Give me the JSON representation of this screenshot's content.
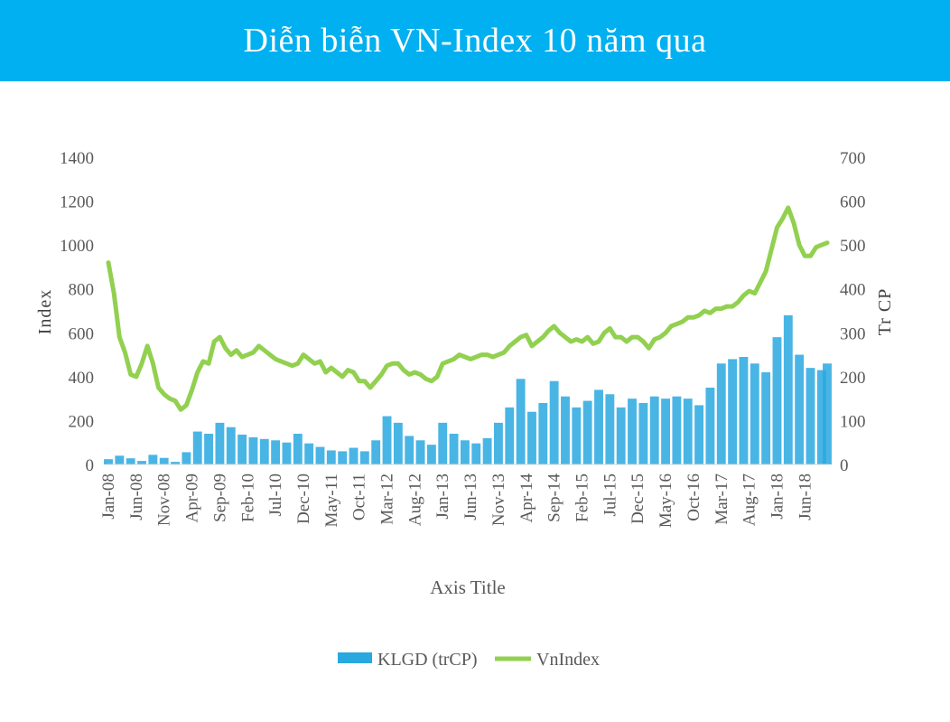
{
  "title": "Diễn biễn VN-Index 10 năm qua",
  "colors": {
    "banner": "#00b0f0",
    "volume": "#29a8e0",
    "index": "#92d050",
    "text": "#595959"
  },
  "chart_data": {
    "type": "bar+line",
    "xlabel": "Axis Title",
    "ylabel_left": "Index",
    "ylabel_right": "Tr CP",
    "ylim_left": [
      0,
      1400
    ],
    "ylim_right": [
      0,
      700
    ],
    "yticks_left": [
      "0",
      "200",
      "400",
      "600",
      "800",
      "1000",
      "1200",
      "1400"
    ],
    "yticks_right": [
      "0",
      "100",
      "200",
      "300",
      "400",
      "500",
      "600",
      "700"
    ],
    "x_tick_labels": [
      "Jan-08",
      "Jun-08",
      "Nov-08",
      "Apr-09",
      "Sep-09",
      "Feb-10",
      "Jul-10",
      "Dec-10",
      "May-11",
      "Oct-11",
      "Mar-12",
      "Aug-12",
      "Jan-13",
      "Jun-13",
      "Nov-13",
      "Apr-14",
      "Sep-14",
      "Feb-15",
      "Jul-15",
      "Dec-15",
      "May-16",
      "Oct-16",
      "Mar-17",
      "Aug-17",
      "Jan-18",
      "Jun-18"
    ],
    "x_range": [
      "Jan-08",
      "Oct-18"
    ],
    "legend": "bottom",
    "series": [
      {
        "name": "KLGD (trCP)",
        "type": "bar",
        "axis": "right",
        "x": [
          "Jan-08",
          "Mar-08",
          "May-08",
          "Jul-08",
          "Sep-08",
          "Nov-08",
          "Jan-09",
          "Mar-09",
          "May-09",
          "Jul-09",
          "Sep-09",
          "Nov-09",
          "Jan-10",
          "Mar-10",
          "May-10",
          "Jul-10",
          "Sep-10",
          "Nov-10",
          "Jan-11",
          "Mar-11",
          "May-11",
          "Jul-11",
          "Sep-11",
          "Nov-11",
          "Jan-12",
          "Mar-12",
          "May-12",
          "Jul-12",
          "Sep-12",
          "Nov-12",
          "Jan-13",
          "Mar-13",
          "May-13",
          "Jul-13",
          "Sep-13",
          "Nov-13",
          "Jan-14",
          "Mar-14",
          "May-14",
          "Jul-14",
          "Sep-14",
          "Nov-14",
          "Jan-15",
          "Mar-15",
          "May-15",
          "Jul-15",
          "Sep-15",
          "Nov-15",
          "Jan-16",
          "Mar-16",
          "May-16",
          "Jul-16",
          "Sep-16",
          "Nov-16",
          "Jan-17",
          "Mar-17",
          "May-17",
          "Jul-17",
          "Sep-17",
          "Nov-17",
          "Jan-18",
          "Mar-18",
          "May-18",
          "Jul-18",
          "Sep-18",
          "Oct-18"
        ],
        "values": [
          12,
          20,
          14,
          8,
          22,
          15,
          6,
          28,
          75,
          70,
          95,
          85,
          68,
          62,
          58,
          55,
          50,
          70,
          48,
          40,
          32,
          30,
          38,
          30,
          55,
          110,
          95,
          65,
          55,
          45,
          95,
          70,
          55,
          48,
          60,
          95,
          130,
          195,
          120,
          140,
          190,
          155,
          130,
          145,
          170,
          160,
          130,
          150,
          140,
          155,
          150,
          155,
          150,
          135,
          175,
          230,
          240,
          245,
          230,
          210,
          290,
          340,
          250,
          220,
          215,
          230
        ]
      },
      {
        "name": "VnIndex",
        "type": "line",
        "axis": "left",
        "x": [
          "Jan-08",
          "Feb-08",
          "Mar-08",
          "Apr-08",
          "May-08",
          "Jun-08",
          "Jul-08",
          "Aug-08",
          "Sep-08",
          "Oct-08",
          "Nov-08",
          "Dec-08",
          "Jan-09",
          "Feb-09",
          "Mar-09",
          "Apr-09",
          "May-09",
          "Jun-09",
          "Jul-09",
          "Aug-09",
          "Sep-09",
          "Oct-09",
          "Nov-09",
          "Dec-09",
          "Jan-10",
          "Feb-10",
          "Mar-10",
          "Apr-10",
          "May-10",
          "Jun-10",
          "Jul-10",
          "Aug-10",
          "Sep-10",
          "Oct-10",
          "Nov-10",
          "Dec-10",
          "Jan-11",
          "Feb-11",
          "Mar-11",
          "Apr-11",
          "May-11",
          "Jun-11",
          "Jul-11",
          "Aug-11",
          "Sep-11",
          "Oct-11",
          "Nov-11",
          "Dec-11",
          "Jan-12",
          "Feb-12",
          "Mar-12",
          "Apr-12",
          "May-12",
          "Jun-12",
          "Jul-12",
          "Aug-12",
          "Sep-12",
          "Oct-12",
          "Nov-12",
          "Dec-12",
          "Jan-13",
          "Feb-13",
          "Mar-13",
          "Apr-13",
          "May-13",
          "Jun-13",
          "Jul-13",
          "Aug-13",
          "Sep-13",
          "Oct-13",
          "Nov-13",
          "Dec-13",
          "Jan-14",
          "Feb-14",
          "Mar-14",
          "Apr-14",
          "May-14",
          "Jun-14",
          "Jul-14",
          "Aug-14",
          "Sep-14",
          "Oct-14",
          "Nov-14",
          "Dec-14",
          "Jan-15",
          "Feb-15",
          "Mar-15",
          "Apr-15",
          "May-15",
          "Jun-15",
          "Jul-15",
          "Aug-15",
          "Sep-15",
          "Oct-15",
          "Nov-15",
          "Dec-15",
          "Jan-16",
          "Feb-16",
          "Mar-16",
          "Apr-16",
          "May-16",
          "Jun-16",
          "Jul-16",
          "Aug-16",
          "Sep-16",
          "Oct-16",
          "Nov-16",
          "Dec-16",
          "Jan-17",
          "Feb-17",
          "Mar-17",
          "Apr-17",
          "May-17",
          "Jun-17",
          "Jul-17",
          "Aug-17",
          "Sep-17",
          "Oct-17",
          "Nov-17",
          "Dec-17",
          "Jan-18",
          "Feb-18",
          "Mar-18",
          "Apr-18",
          "May-18",
          "Jun-18",
          "Jul-18",
          "Aug-18",
          "Sep-18",
          "Oct-18"
        ],
        "values": [
          920,
          780,
          580,
          510,
          410,
          400,
          460,
          540,
          460,
          350,
          320,
          300,
          290,
          250,
          270,
          340,
          420,
          470,
          460,
          560,
          580,
          530,
          500,
          520,
          490,
          500,
          510,
          540,
          520,
          500,
          480,
          470,
          460,
          450,
          460,
          500,
          480,
          460,
          470,
          420,
          440,
          420,
          400,
          430,
          420,
          380,
          380,
          350,
          380,
          410,
          450,
          460,
          460,
          430,
          410,
          420,
          410,
          390,
          380,
          400,
          460,
          470,
          480,
          500,
          490,
          480,
          490,
          500,
          500,
          490,
          500,
          510,
          540,
          560,
          580,
          590,
          540,
          560,
          580,
          610,
          630,
          600,
          580,
          560,
          570,
          560,
          580,
          550,
          560,
          600,
          620,
          580,
          580,
          560,
          580,
          580,
          560,
          530,
          570,
          580,
          600,
          630,
          640,
          650,
          670,
          670,
          680,
          700,
          690,
          710,
          710,
          720,
          720,
          740,
          770,
          790,
          780,
          830,
          880,
          980,
          1080,
          1120,
          1170,
          1100,
          1000,
          950,
          950,
          990,
          1000,
          1010
        ]
      }
    ]
  },
  "legend": {
    "volume_label": "KLGD (trCP)",
    "index_label": "VnIndex"
  }
}
